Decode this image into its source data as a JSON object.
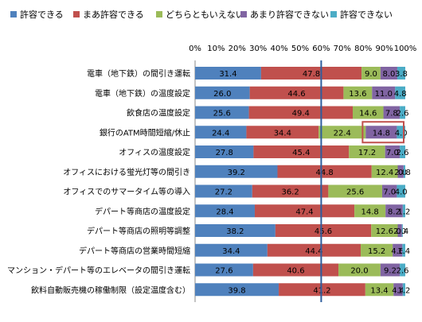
{
  "chart_data": {
    "type": "bar",
    "orientation": "horizontal",
    "stacked": "percent",
    "xlim": [
      0,
      100
    ],
    "x_tick_labels": [
      "0%",
      "10%",
      "20%",
      "30%",
      "40%",
      "50%",
      "60%",
      "70%",
      "80%",
      "90%",
      "100%"
    ],
    "reference_line_at": 60,
    "grid": false,
    "legend_position": "top",
    "categories": [
      "電車（地下鉄）の間引き運転",
      "電車（地下鉄）の温度設定",
      "飲食店の温度設定",
      "銀行のATM時間短縮/休止",
      "オフィスの温度設定",
      "オフィスにおける蛍光灯等の間引き",
      "オフィスでのサマータイム等の導入",
      "デパート等商店の温度設定",
      "デパート等商店の照明等調整",
      "デパート等商店の営業時間短縮",
      "マンション・デパート等のエレベータの間引き運転",
      "飲料自動販売機の稼働制限（設定温度含む）"
    ],
    "series": [
      {
        "name": "許容できる",
        "color": "#4f81bd",
        "values": [
          31.4,
          26.0,
          25.6,
          24.4,
          27.8,
          39.2,
          27.2,
          28.4,
          38.2,
          34.4,
          27.6,
          39.8
        ]
      },
      {
        "name": "まあ許容できる",
        "color": "#c0504d",
        "values": [
          47.8,
          44.6,
          49.4,
          34.4,
          45.4,
          44.8,
          36.2,
          47.4,
          45.6,
          44.4,
          40.6,
          41.2
        ]
      },
      {
        "name": "どちらともいえない",
        "color": "#9bbb59",
        "values": [
          9.0,
          13.6,
          14.6,
          22.4,
          17.2,
          12.4,
          25.6,
          14.8,
          12.6,
          15.2,
          20.0,
          13.4
        ]
      },
      {
        "name": "あまり許容できない",
        "color": "#8064a2",
        "values": [
          8.0,
          11.0,
          7.8,
          14.8,
          7.0,
          2.8,
          7.0,
          8.2,
          2.0,
          4.6,
          9.2,
          4.4
        ]
      },
      {
        "name": "許容できない",
        "color": "#4bacc6",
        "values": [
          3.8,
          4.8,
          2.6,
          4.0,
          2.6,
          0.8,
          4.0,
          1.2,
          0.4,
          1.4,
          2.6,
          1.2
        ]
      }
    ],
    "bar_labels": [
      [
        "31.4",
        "47.8",
        "9.0",
        "8.0",
        "3.8"
      ],
      [
        "26.0",
        "44.6",
        "13.6",
        "11.0",
        "4.8"
      ],
      [
        "25.6",
        "49.4",
        "14.6",
        "7.8",
        "2.6"
      ],
      [
        "24.4",
        "34.4",
        "22.4",
        "14.8",
        "4.0"
      ],
      [
        "27.8",
        "45.4",
        "17.2",
        "7.0",
        "2.6"
      ],
      [
        "39.2",
        "44.8",
        "12.4",
        "2.8",
        "0.8"
      ],
      [
        "27.2",
        "36.2",
        "25.6",
        "7.0",
        "4.0"
      ],
      [
        "28.4",
        "47.4",
        "14.8",
        "8.2",
        "1.2"
      ],
      [
        "38.2",
        "45.6",
        "12.6",
        "2.0",
        "0.4"
      ],
      [
        "34.4",
        "44.4",
        "15.2",
        "4.6",
        "1.4"
      ],
      [
        "27.6",
        "40.6",
        "20.0",
        "9.2",
        "2.6"
      ],
      [
        "39.8",
        "41.2",
        "13.4",
        "4.4",
        "1.2"
      ]
    ],
    "highlight": {
      "category_index": 3,
      "series_indices": [
        3,
        4
      ],
      "color": "#c0504d"
    }
  }
}
